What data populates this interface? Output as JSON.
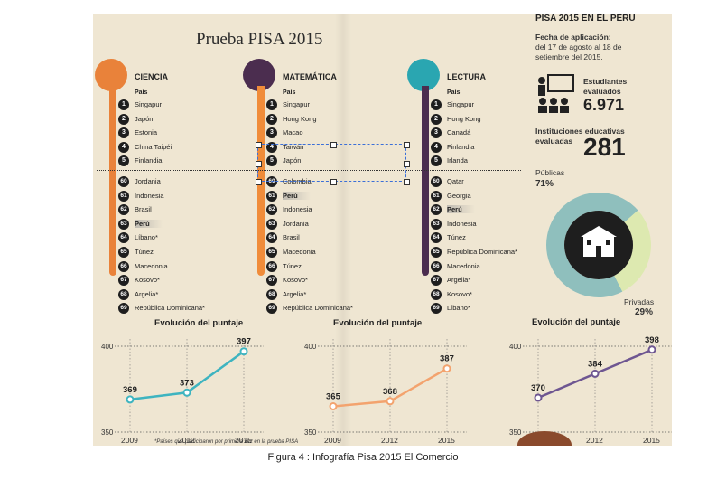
{
  "title": "Prueba PISA 2015",
  "columns": [
    {
      "heading": "CIENCIA",
      "pais_label": "País",
      "color": "#e9823a",
      "top": [
        {
          "n": "1",
          "c": "Singapur"
        },
        {
          "n": "2",
          "c": "Japón"
        },
        {
          "n": "3",
          "c": "Estonia"
        },
        {
          "n": "4",
          "c": "China Taipéi"
        },
        {
          "n": "5",
          "c": "Finlandia"
        }
      ],
      "bottom": [
        {
          "n": "60",
          "c": "Jordania"
        },
        {
          "n": "61",
          "c": "Indonesia"
        },
        {
          "n": "62",
          "c": "Brasil"
        },
        {
          "n": "63",
          "c": "Perú"
        },
        {
          "n": "64",
          "c": "Líbano*"
        },
        {
          "n": "65",
          "c": "Túnez"
        },
        {
          "n": "66",
          "c": "Macedonia"
        },
        {
          "n": "67",
          "c": "Kosovo*"
        },
        {
          "n": "68",
          "c": "Argelia*"
        },
        {
          "n": "69",
          "c": "República Dominicana*"
        }
      ]
    },
    {
      "heading": "MATEMÁTICA",
      "pais_label": "País",
      "color": "#f08c3a",
      "top": [
        {
          "n": "1",
          "c": "Singapur"
        },
        {
          "n": "2",
          "c": "Hong Kong"
        },
        {
          "n": "3",
          "c": "Macao"
        },
        {
          "n": "4",
          "c": "Taiwán"
        },
        {
          "n": "5",
          "c": "Japón"
        }
      ],
      "bottom": [
        {
          "n": "60",
          "c": "Colombia"
        },
        {
          "n": "61",
          "c": "Perú"
        },
        {
          "n": "62",
          "c": "Indonesia"
        },
        {
          "n": "63",
          "c": "Jordania"
        },
        {
          "n": "64",
          "c": "Brasil"
        },
        {
          "n": "65",
          "c": "Macedonia"
        },
        {
          "n": "66",
          "c": "Túnez"
        },
        {
          "n": "67",
          "c": "Kosovo*"
        },
        {
          "n": "68",
          "c": "Argelia*"
        },
        {
          "n": "69",
          "c": "República Dominicana*"
        }
      ]
    },
    {
      "heading": "LECTURA",
      "pais_label": "País",
      "color": "#4b2d4f",
      "top": [
        {
          "n": "1",
          "c": "Singapur"
        },
        {
          "n": "2",
          "c": "Hong Kong"
        },
        {
          "n": "3",
          "c": "Canadá"
        },
        {
          "n": "4",
          "c": "Finlandia"
        },
        {
          "n": "5",
          "c": "Irlanda"
        }
      ],
      "bottom": [
        {
          "n": "60",
          "c": "Qatar"
        },
        {
          "n": "61",
          "c": "Georgia"
        },
        {
          "n": "62",
          "c": "Perú"
        },
        {
          "n": "63",
          "c": "Indonesia"
        },
        {
          "n": "64",
          "c": "Túnez"
        },
        {
          "n": "65",
          "c": "República Dominicana*"
        },
        {
          "n": "66",
          "c": "Macedonia"
        },
        {
          "n": "67",
          "c": "Argelia*"
        },
        {
          "n": "68",
          "c": "Kosovo*"
        },
        {
          "n": "69",
          "c": "Líbano*"
        }
      ]
    }
  ],
  "panel": {
    "title": "PISA 2015 EN EL PERÚ",
    "fecha_label": "Fecha de aplicación:",
    "fecha_line1": "del 17 de agosto al 18 de",
    "fecha_line2": "setiembre del 2015.",
    "estudiantes_l1": "Estudiantes",
    "estudiantes_l2": "evaluados",
    "estudiantes_value": "6.971",
    "inst_l1": "Instituciones educativas",
    "inst_l2": "evaluadas",
    "inst_value": "281",
    "publicas_label": "Públicas",
    "publicas_pct": "71%",
    "privadas_label": "Privadas",
    "privadas_pct": "29%"
  },
  "chart_data": [
    {
      "type": "line",
      "title": "Evolución del puntaje",
      "x": [
        "2009",
        "2012",
        "2015"
      ],
      "values": [
        369,
        373,
        397
      ],
      "ylim": [
        350,
        400
      ],
      "yticks": [
        "400",
        "350"
      ],
      "color": "#3eb4c0"
    },
    {
      "type": "line",
      "title": "Evolución del puntaje",
      "x": [
        "2009",
        "2012",
        "2015"
      ],
      "values": [
        365,
        368,
        387
      ],
      "ylim": [
        350,
        400
      ],
      "yticks": [
        "400",
        "350"
      ],
      "color": "#f3a36e"
    },
    {
      "type": "line",
      "title": "Evolución del puntaje",
      "x": [
        "2009",
        "2012",
        "2015"
      ],
      "values": [
        370,
        384,
        398
      ],
      "ylim": [
        350,
        400
      ],
      "yticks": [
        "400",
        "350"
      ],
      "color": "#6e5691"
    },
    {
      "type": "pie",
      "values": [
        71,
        29
      ],
      "labels": [
        "Públicas",
        "Privadas"
      ],
      "colors": [
        "#8fbfbd",
        "#dde9b0"
      ]
    }
  ],
  "footnote": "*Países que participaron por primera vez en la prueba PISA",
  "caption": "Figura 4 : Infografía Pisa 2015 El Comercio"
}
